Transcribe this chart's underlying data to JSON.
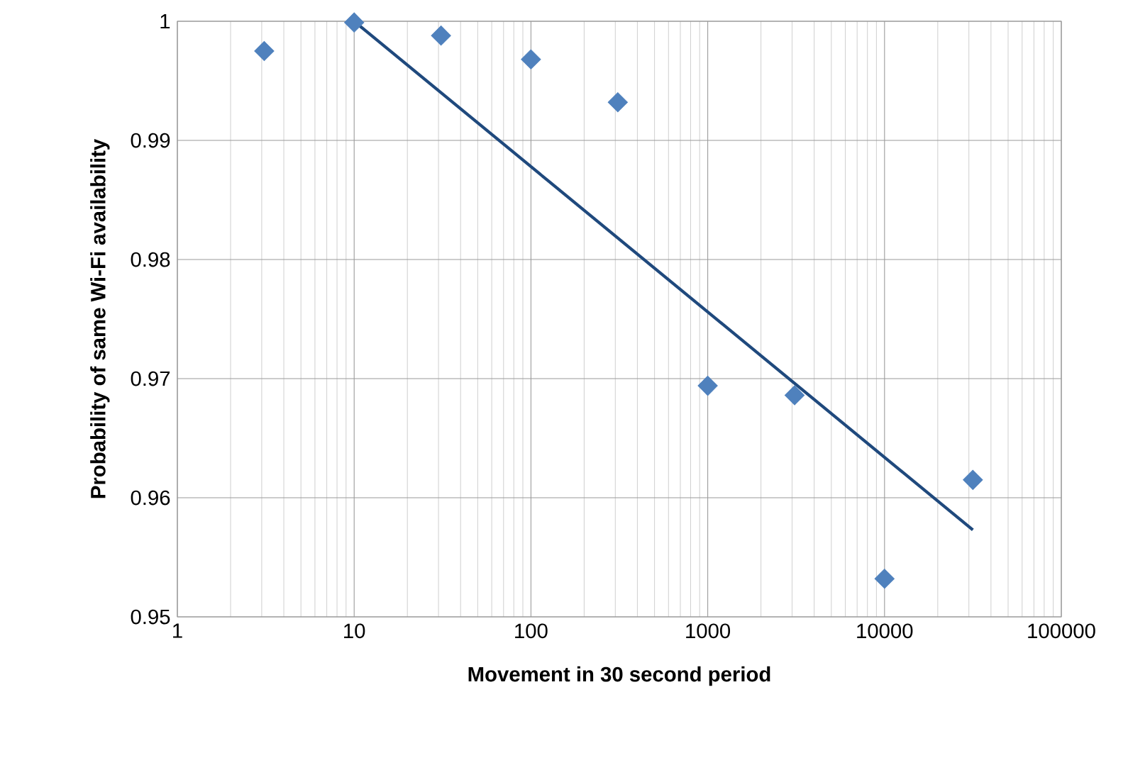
{
  "chart_data": {
    "type": "scatter",
    "xlabel": "Movement in 30 second period",
    "ylabel": "Probability of same Wi-Fi availability",
    "log": "x",
    "grid": true,
    "xlim": [
      1,
      100000
    ],
    "xticks": [
      1,
      10,
      100,
      1000,
      10000,
      100000
    ],
    "ylim": [
      0.95,
      1
    ],
    "yticks": [
      0.95,
      0.96,
      0.97,
      0.98,
      0.99,
      1
    ],
    "series": [
      {
        "color": "#4f81bd",
        "marker": "diamond",
        "x": [
          3.1,
          10,
          31,
          100,
          310,
          1000,
          3100,
          10000,
          31600
        ],
        "values": [
          0.9975,
          0.9999,
          0.9988,
          0.9968,
          0.9932,
          0.9694,
          0.9686,
          0.9532,
          0.9615
        ]
      },
      {
        "type": "line",
        "marker": "none",
        "color": "#1f497d",
        "x": [
          10,
          31600
        ],
        "values": [
          1.0,
          0.9573
        ]
      }
    ]
  }
}
